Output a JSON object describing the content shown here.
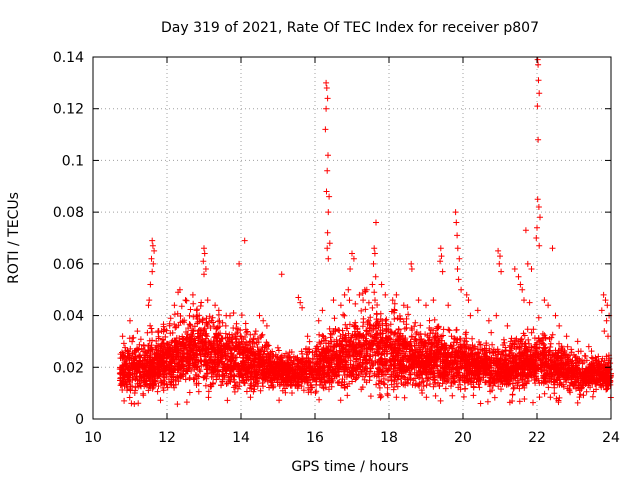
{
  "chart_data": {
    "type": "scatter",
    "title": "Day 319 of 2021, Rate Of TEC Index for receiver p807",
    "xlabel": "GPS time / hours",
    "ylabel": "ROTI / TECUs",
    "xlim": [
      10,
      24
    ],
    "ylim": [
      0,
      0.14
    ],
    "xticks": [
      10,
      12,
      14,
      16,
      18,
      20,
      22,
      24
    ],
    "yticks": [
      0,
      0.02,
      0.04,
      0.06,
      0.08,
      0.1,
      0.12,
      0.14
    ],
    "xtick_labels": [
      "10",
      "12",
      "14",
      "16",
      "18",
      "20",
      "22",
      "24"
    ],
    "ytick_labels": [
      "0",
      "0.02",
      "0.04",
      "0.06",
      "0.08",
      "0.1",
      "0.12",
      "0.14"
    ],
    "grid": true,
    "marker": "+",
    "color": "#ff0000",
    "x_start": 10.72,
    "x_end": 24.0,
    "envelope": [
      [
        10.72,
        0.004,
        0.026
      ],
      [
        11.0,
        0.004,
        0.03
      ],
      [
        11.4,
        0.004,
        0.032
      ],
      [
        11.7,
        0.005,
        0.034
      ],
      [
        12.0,
        0.005,
        0.036
      ],
      [
        12.4,
        0.006,
        0.04
      ],
      [
        12.8,
        0.007,
        0.044
      ],
      [
        13.2,
        0.006,
        0.04
      ],
      [
        13.6,
        0.006,
        0.038
      ],
      [
        14.0,
        0.006,
        0.036
      ],
      [
        14.4,
        0.006,
        0.032
      ],
      [
        14.8,
        0.007,
        0.028
      ],
      [
        15.2,
        0.007,
        0.024
      ],
      [
        15.6,
        0.007,
        0.024
      ],
      [
        16.0,
        0.006,
        0.03
      ],
      [
        16.4,
        0.006,
        0.036
      ],
      [
        16.8,
        0.006,
        0.04
      ],
      [
        17.2,
        0.006,
        0.044
      ],
      [
        17.6,
        0.006,
        0.046
      ],
      [
        18.0,
        0.006,
        0.042
      ],
      [
        18.4,
        0.006,
        0.04
      ],
      [
        18.8,
        0.006,
        0.036
      ],
      [
        19.2,
        0.006,
        0.036
      ],
      [
        19.6,
        0.006,
        0.034
      ],
      [
        20.0,
        0.006,
        0.032
      ],
      [
        20.4,
        0.006,
        0.03
      ],
      [
        20.8,
        0.006,
        0.03
      ],
      [
        21.2,
        0.006,
        0.028
      ],
      [
        21.6,
        0.006,
        0.032
      ],
      [
        22.0,
        0.006,
        0.036
      ],
      [
        22.4,
        0.006,
        0.03
      ],
      [
        22.8,
        0.006,
        0.026
      ],
      [
        23.2,
        0.006,
        0.024
      ],
      [
        23.6,
        0.006,
        0.024
      ],
      [
        24.0,
        0.006,
        0.022
      ]
    ],
    "points": [
      [
        16.3,
        0.13
      ],
      [
        16.32,
        0.128
      ],
      [
        16.34,
        0.124
      ],
      [
        16.3,
        0.12
      ],
      [
        16.28,
        0.112
      ],
      [
        16.35,
        0.102
      ],
      [
        16.33,
        0.096
      ],
      [
        16.31,
        0.088
      ],
      [
        16.38,
        0.086
      ],
      [
        16.36,
        0.08
      ],
      [
        16.34,
        0.072
      ],
      [
        16.4,
        0.068
      ],
      [
        16.33,
        0.066
      ],
      [
        16.36,
        0.062
      ],
      [
        22.02,
        0.139
      ],
      [
        22.03,
        0.137
      ],
      [
        22.04,
        0.131
      ],
      [
        22.06,
        0.126
      ],
      [
        22.01,
        0.121
      ],
      [
        22.03,
        0.108
      ],
      [
        22.02,
        0.085
      ],
      [
        22.05,
        0.082
      ],
      [
        22.08,
        0.078
      ],
      [
        22.0,
        0.074
      ],
      [
        21.98,
        0.07
      ],
      [
        22.06,
        0.067
      ],
      [
        21.7,
        0.073
      ],
      [
        22.42,
        0.066
      ],
      [
        11.6,
        0.069
      ],
      [
        11.62,
        0.067
      ],
      [
        11.65,
        0.065
      ],
      [
        11.58,
        0.062
      ],
      [
        11.63,
        0.06
      ],
      [
        11.6,
        0.057
      ],
      [
        11.55,
        0.052
      ],
      [
        11.52,
        0.046
      ],
      [
        11.5,
        0.044
      ],
      [
        13.0,
        0.066
      ],
      [
        13.02,
        0.064
      ],
      [
        12.98,
        0.061
      ],
      [
        13.05,
        0.058
      ],
      [
        13.0,
        0.056
      ],
      [
        14.1,
        0.069
      ],
      [
        13.95,
        0.06
      ],
      [
        15.1,
        0.056
      ],
      [
        15.55,
        0.047
      ],
      [
        15.6,
        0.045
      ],
      [
        15.65,
        0.043
      ],
      [
        17.0,
        0.064
      ],
      [
        17.05,
        0.062
      ],
      [
        16.95,
        0.058
      ],
      [
        17.65,
        0.076
      ],
      [
        17.6,
        0.066
      ],
      [
        17.62,
        0.064
      ],
      [
        17.58,
        0.06
      ],
      [
        17.64,
        0.055
      ],
      [
        17.55,
        0.052
      ],
      [
        17.6,
        0.049
      ],
      [
        18.6,
        0.06
      ],
      [
        18.62,
        0.058
      ],
      [
        19.4,
        0.066
      ],
      [
        19.42,
        0.063
      ],
      [
        19.38,
        0.061
      ],
      [
        19.45,
        0.057
      ],
      [
        19.8,
        0.08
      ],
      [
        19.82,
        0.076
      ],
      [
        19.84,
        0.071
      ],
      [
        19.86,
        0.066
      ],
      [
        19.9,
        0.062
      ],
      [
        19.85,
        0.058
      ],
      [
        19.88,
        0.054
      ],
      [
        19.95,
        0.05
      ],
      [
        20.1,
        0.048
      ],
      [
        20.15,
        0.046
      ],
      [
        20.95,
        0.065
      ],
      [
        21.0,
        0.063
      ],
      [
        20.98,
        0.06
      ],
      [
        21.03,
        0.057
      ],
      [
        21.4,
        0.058
      ],
      [
        21.5,
        0.055
      ],
      [
        21.55,
        0.052
      ],
      [
        21.6,
        0.05
      ],
      [
        21.75,
        0.06
      ],
      [
        21.85,
        0.058
      ],
      [
        21.65,
        0.046
      ],
      [
        21.8,
        0.045
      ],
      [
        23.8,
        0.048
      ],
      [
        23.85,
        0.046
      ],
      [
        23.9,
        0.044
      ],
      [
        23.75,
        0.042
      ],
      [
        23.95,
        0.04
      ],
      [
        23.88,
        0.038
      ],
      [
        23.82,
        0.034
      ],
      [
        23.92,
        0.032
      ],
      [
        12.1,
        0.039
      ],
      [
        12.2,
        0.044
      ],
      [
        12.3,
        0.049
      ],
      [
        12.35,
        0.05
      ],
      [
        12.5,
        0.046
      ],
      [
        12.7,
        0.048
      ],
      [
        12.8,
        0.042
      ],
      [
        13.1,
        0.046
      ],
      [
        13.3,
        0.044
      ],
      [
        13.4,
        0.042
      ],
      [
        13.6,
        0.04
      ],
      [
        13.8,
        0.041
      ],
      [
        14.5,
        0.04
      ],
      [
        14.6,
        0.038
      ],
      [
        14.7,
        0.036
      ],
      [
        15.8,
        0.032
      ],
      [
        16.1,
        0.038
      ],
      [
        16.2,
        0.042
      ],
      [
        16.5,
        0.046
      ],
      [
        16.7,
        0.044
      ],
      [
        16.8,
        0.048
      ],
      [
        16.9,
        0.05
      ],
      [
        17.2,
        0.048
      ],
      [
        17.3,
        0.046
      ],
      [
        17.4,
        0.05
      ],
      [
        17.8,
        0.052
      ],
      [
        17.9,
        0.048
      ],
      [
        18.1,
        0.046
      ],
      [
        18.2,
        0.048
      ],
      [
        18.4,
        0.044
      ],
      [
        18.8,
        0.046
      ],
      [
        19.0,
        0.044
      ],
      [
        19.2,
        0.046
      ],
      [
        19.6,
        0.044
      ],
      [
        20.2,
        0.04
      ],
      [
        20.4,
        0.042
      ],
      [
        20.7,
        0.038
      ],
      [
        20.9,
        0.04
      ],
      [
        21.2,
        0.036
      ],
      [
        22.2,
        0.046
      ],
      [
        22.3,
        0.044
      ],
      [
        22.5,
        0.04
      ],
      [
        22.6,
        0.036
      ],
      [
        22.8,
        0.032
      ],
      [
        23.1,
        0.03
      ],
      [
        23.4,
        0.028
      ],
      [
        11.0,
        0.038
      ],
      [
        11.2,
        0.034
      ],
      [
        10.8,
        0.032
      ]
    ]
  }
}
